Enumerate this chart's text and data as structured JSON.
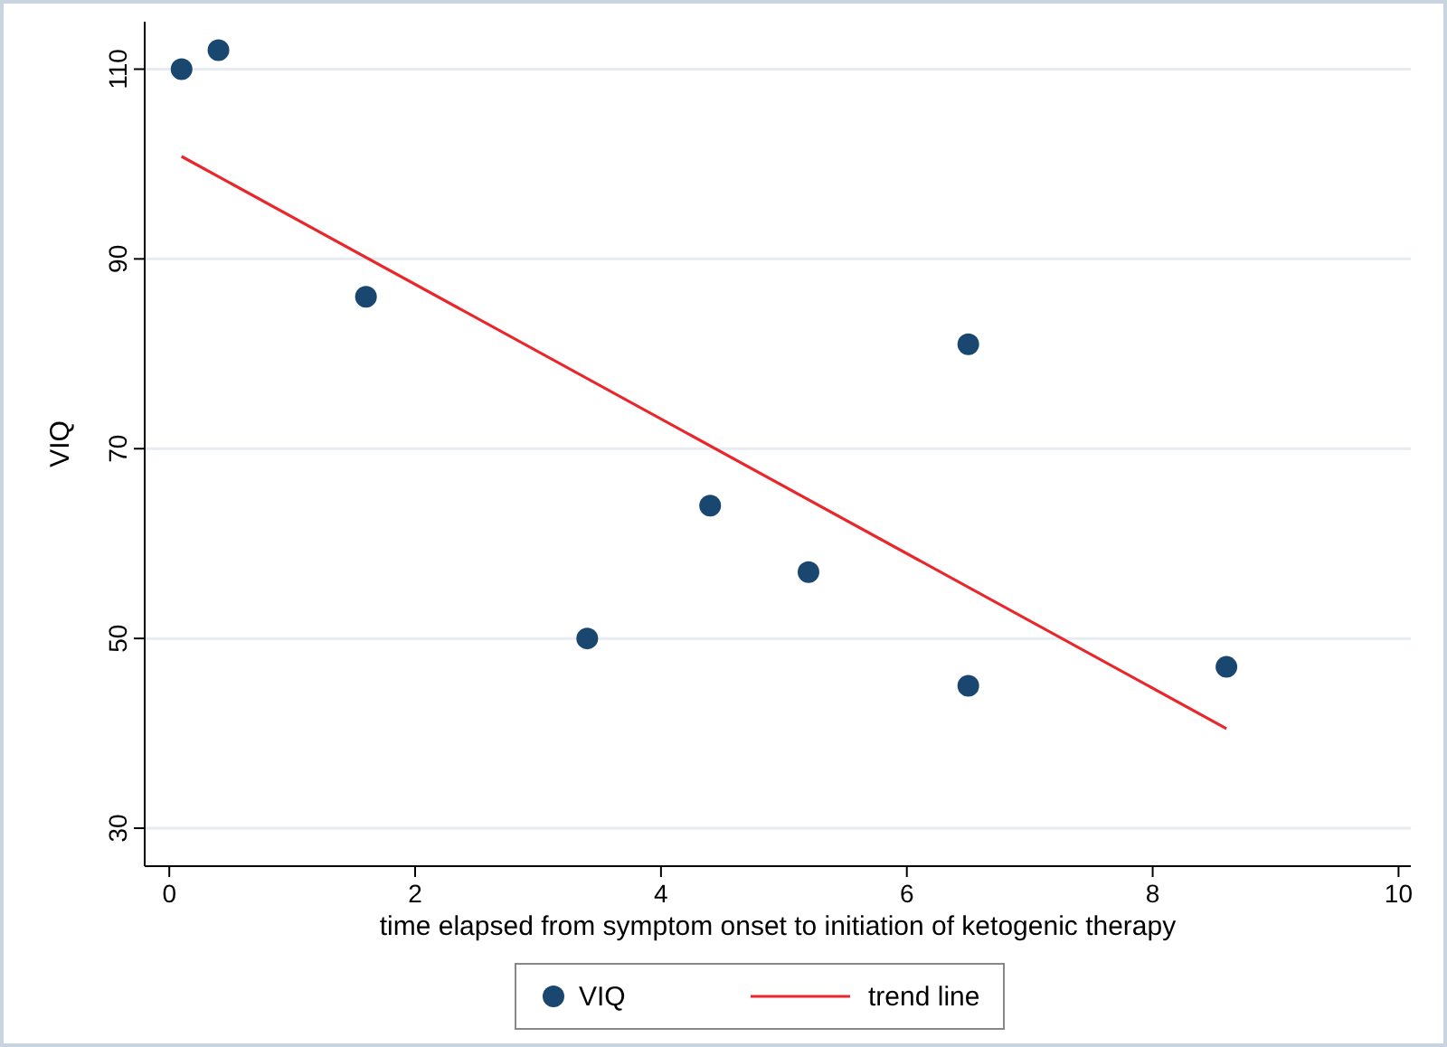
{
  "chart_data": {
    "type": "scatter",
    "xlabel": "time elapsed from symptom onset to initiation of ketogenic therapy",
    "ylabel": "VIQ",
    "xlim": [
      -0.2,
      10.1
    ],
    "ylim": [
      26,
      115
    ],
    "xticks": [
      0,
      2,
      4,
      6,
      8,
      10
    ],
    "yticks": [
      30,
      50,
      70,
      90,
      110
    ],
    "grid": "y",
    "legend": "bottom",
    "series": [
      {
        "name": "VIQ",
        "marker": "circle",
        "color": "#1a476f",
        "x": [
          0.1,
          0.4,
          1.6,
          3.4,
          4.4,
          5.2,
          6.5,
          6.5,
          8.6
        ],
        "values": [
          110,
          112,
          86,
          50,
          64,
          57,
          81,
          45,
          47
        ]
      },
      {
        "name": "trend line",
        "type": "line",
        "color": "#e8262b",
        "line_style": "solid",
        "x": [
          0.1,
          8.6
        ],
        "values": [
          100.8,
          40.5
        ]
      }
    ]
  }
}
